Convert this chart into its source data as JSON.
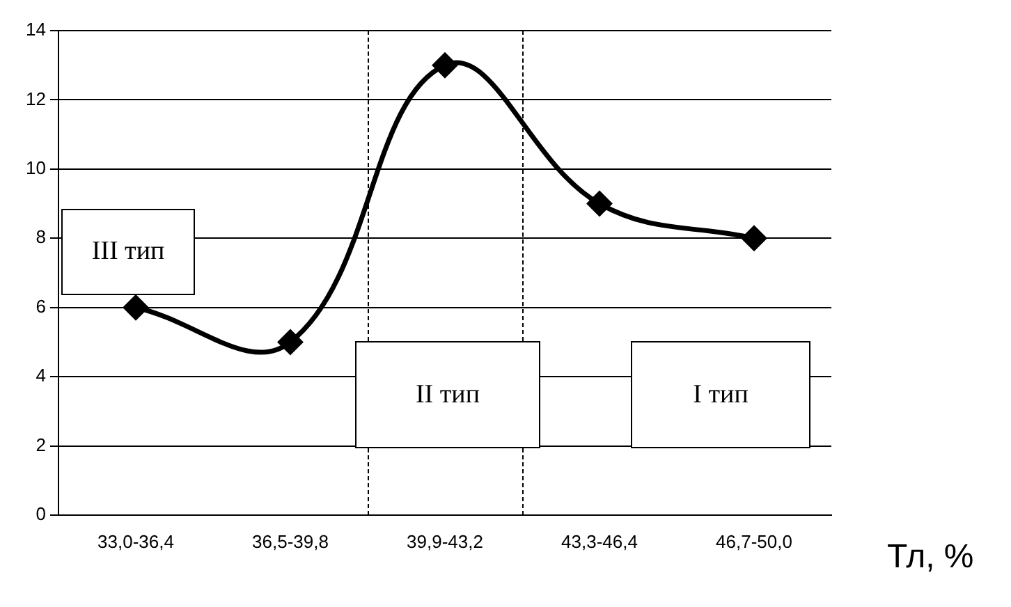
{
  "chart_data": {
    "type": "line",
    "xlabel": "Тл, %",
    "categories": [
      "33,0-36,4",
      "36,5-39,8",
      "39,9-43,2",
      "43,3-46,4",
      "46,7-50,0"
    ],
    "series": [
      {
        "color": "#000000",
        "values": [
          6,
          5,
          13,
          9,
          8
        ]
      }
    ],
    "ylim": [
      0,
      14
    ],
    "yticks": [
      0,
      2,
      4,
      6,
      8,
      10,
      12,
      14
    ],
    "grid": "y",
    "legend": false,
    "marker": "diamond",
    "line_style": "solid",
    "annotations": [
      "III тип",
      "II тип",
      "I тип"
    ]
  }
}
